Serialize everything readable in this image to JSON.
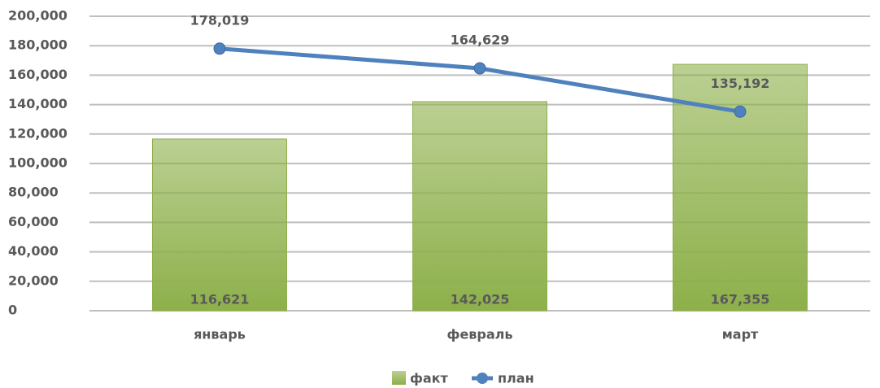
{
  "chart_data": {
    "type": "bar",
    "categories": [
      "январь",
      "февраль",
      "март"
    ],
    "series": [
      {
        "name": "факт",
        "type": "bar",
        "color": "#8db04a",
        "values": [
          116621,
          142025,
          167355
        ],
        "value_labels": [
          "116,621",
          "142,025",
          "167,355"
        ]
      },
      {
        "name": "план",
        "type": "line",
        "color": "#4f81bd",
        "values": [
          178019,
          164629,
          135192
        ],
        "value_labels": [
          "178,019",
          "164,629",
          "135,192"
        ]
      }
    ],
    "ylim": [
      0,
      200000
    ],
    "yticks": [
      0,
      {
        "value": 20000,
        "label": "20,000"
      },
      {
        "value": 40000,
        "label": "40,000"
      },
      {
        "value": 60000,
        "label": "60,000"
      },
      {
        "value": 80000,
        "label": "80,000"
      },
      {
        "value": 100000,
        "label": "100,000"
      },
      {
        "value": 120000,
        "label": "120,000"
      },
      {
        "value": 140000,
        "label": "140,000"
      },
      {
        "value": 160000,
        "label": "160,000"
      },
      {
        "value": 180000,
        "label": "180,000"
      },
      {
        "value": 200000,
        "label": "200,000"
      }
    ],
    "grid": true,
    "legend": "bottom"
  }
}
